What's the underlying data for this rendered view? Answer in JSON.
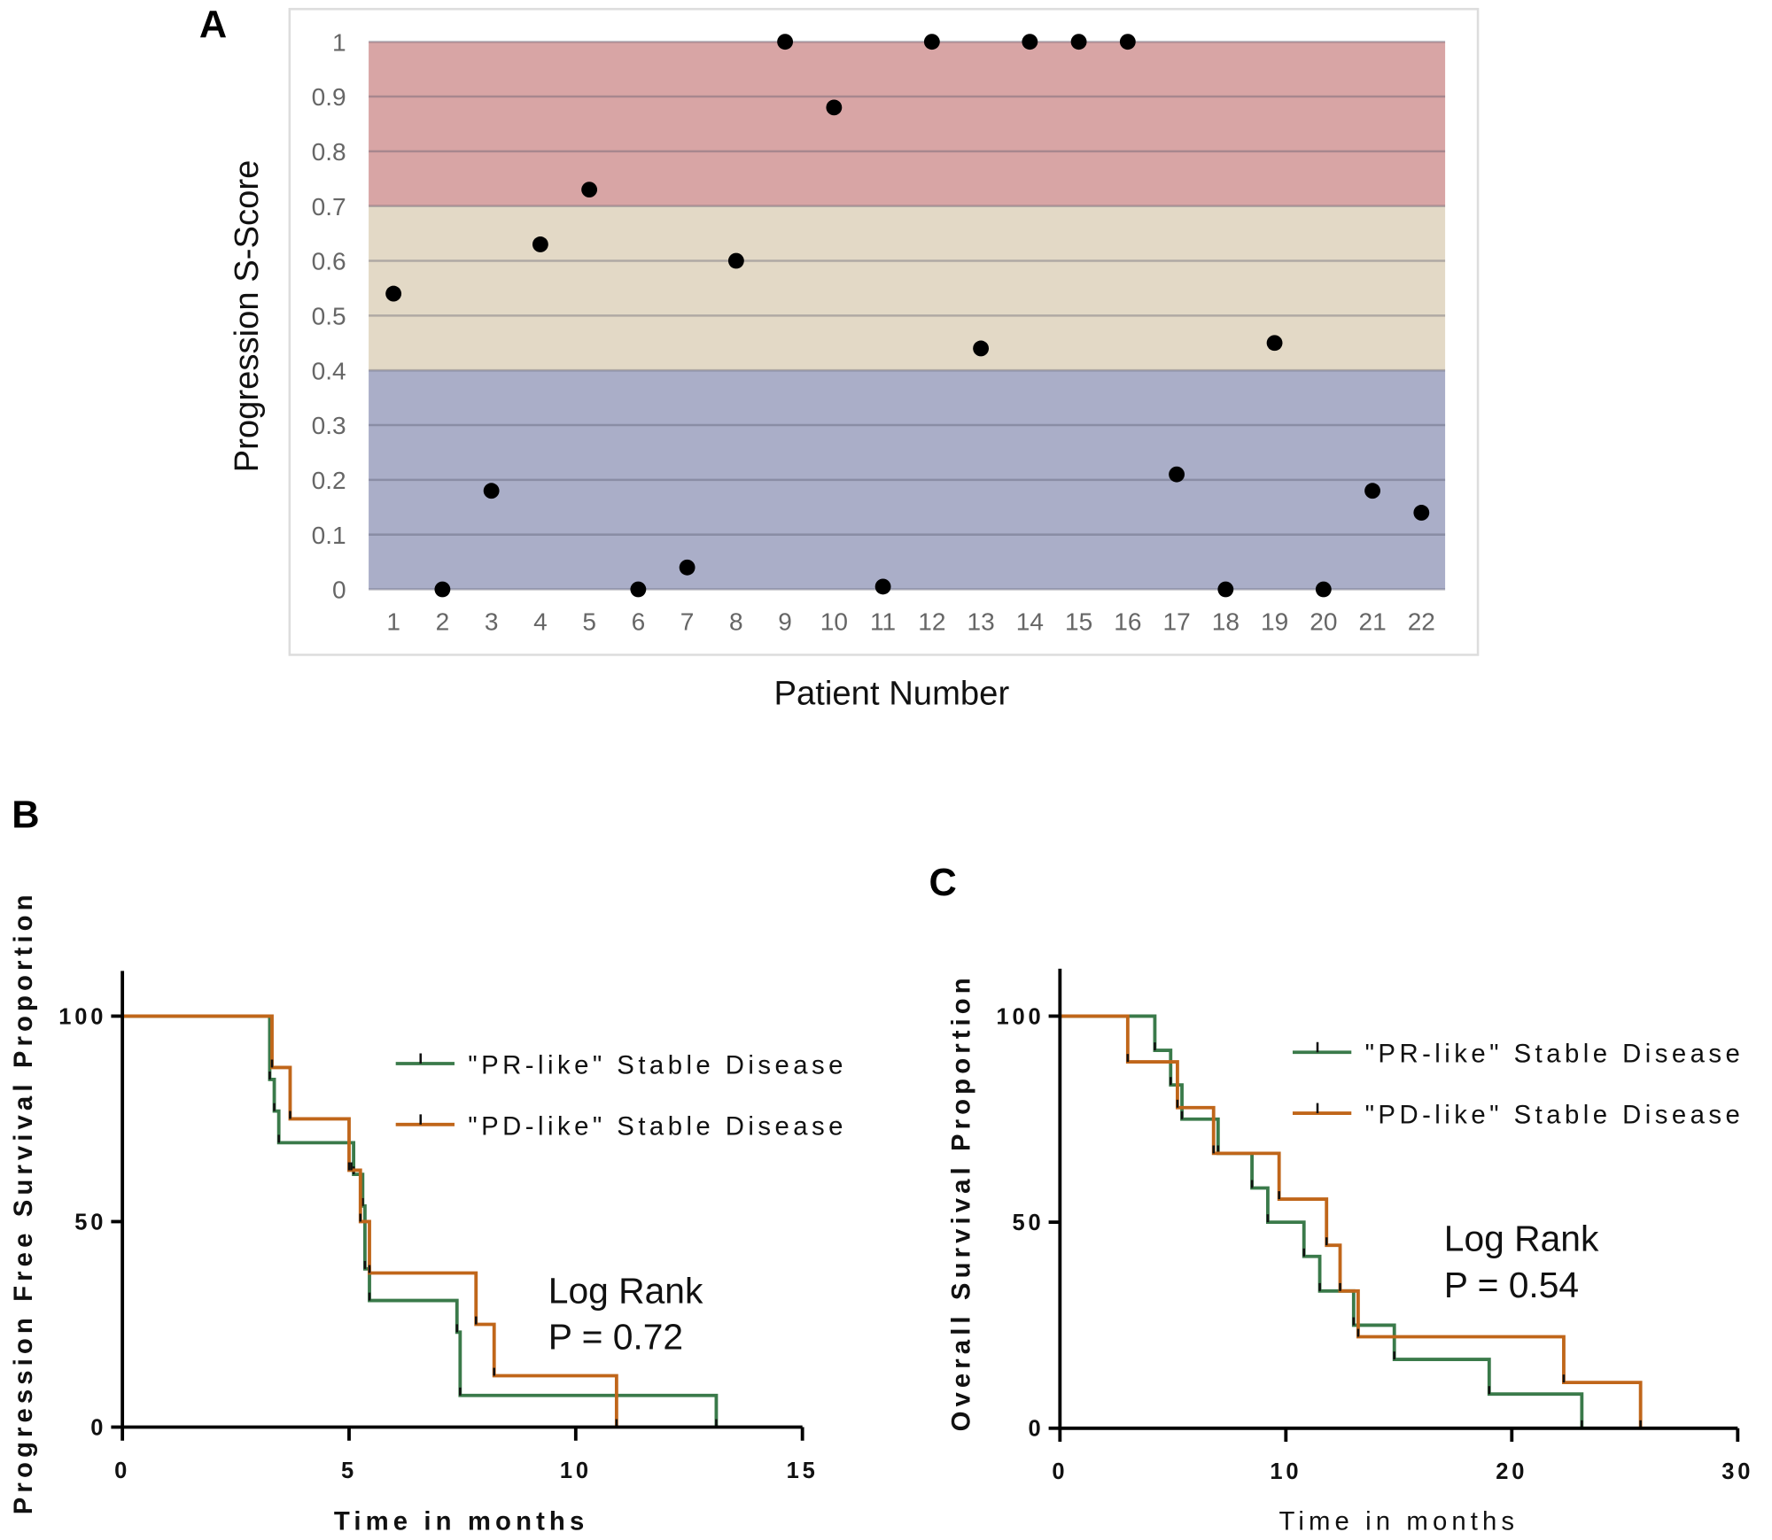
{
  "chart_data": [
    {
      "panel": "A",
      "type": "scatter",
      "xlabel": "Patient Number",
      "ylabel": "Progression S-Score",
      "ylim": [
        0,
        1
      ],
      "yticks": [
        "0",
        "0.1",
        "0.2",
        "0.3",
        "0.4",
        "0.5",
        "0.6",
        "0.7",
        "0.8",
        "0.9",
        "1"
      ],
      "categories": [
        "1",
        "2",
        "3",
        "4",
        "5",
        "6",
        "7",
        "8",
        "9",
        "10",
        "11",
        "12",
        "13",
        "14",
        "15",
        "16",
        "17",
        "18",
        "19",
        "20",
        "21",
        "22"
      ],
      "values": [
        0.54,
        0,
        0.18,
        0.63,
        0.73,
        0,
        0.04,
        0.6,
        1,
        0.88,
        0.005,
        1,
        0.44,
        1,
        1,
        1,
        0.21,
        0,
        0.45,
        0,
        0.18,
        0.14
      ],
      "bands": [
        {
          "from": 0,
          "to": 0.4,
          "color": "#aaaec8"
        },
        {
          "from": 0.4,
          "to": 0.7,
          "color": "#e3d9c6"
        },
        {
          "from": 0.7,
          "to": 1,
          "color": "#d8a5a5"
        }
      ],
      "grid": true
    },
    {
      "panel": "B",
      "type": "line",
      "xlabel": "Time in months",
      "ylabel": "Progression Free Survival Proportion",
      "xlim": [
        0,
        15
      ],
      "ylim": [
        0,
        100
      ],
      "xticks": [
        "0",
        "5",
        "10",
        "15"
      ],
      "yticks": [
        "0",
        "50",
        "100"
      ],
      "legend": "top-right",
      "annotation": [
        "Log Rank",
        "P = 0.72"
      ],
      "series": [
        {
          "name": "\"PR-like\" Stable Disease",
          "color": "#3a7a4a",
          "steps": [
            [
              0,
              100
            ],
            [
              3.25,
              84.6
            ],
            [
              3.35,
              76.9
            ],
            [
              3.45,
              69.2
            ],
            [
              5.1,
              61.5
            ],
            [
              5.3,
              53.8
            ],
            [
              5.35,
              38.5
            ],
            [
              5.45,
              30.8
            ],
            [
              7.38,
              23.1
            ],
            [
              7.45,
              7.7
            ],
            [
              13.1,
              0
            ]
          ]
        },
        {
          "name": "\"PD-like\" Stable Disease",
          "color": "#c0661a",
          "steps": [
            [
              0,
              100
            ],
            [
              3.3,
              87.5
            ],
            [
              3.7,
              75
            ],
            [
              5.0,
              62.5
            ],
            [
              5.05,
              62.5
            ],
            [
              5.25,
              50
            ],
            [
              5.45,
              37.5
            ],
            [
              7.8,
              25
            ],
            [
              8.2,
              12.5
            ],
            [
              10.9,
              0
            ]
          ]
        }
      ]
    },
    {
      "panel": "C",
      "type": "line",
      "xlabel": "Time in months",
      "ylabel": "Overall Survival Proportion",
      "xlim": [
        0,
        30
      ],
      "ylim": [
        0,
        100
      ],
      "xticks": [
        "0",
        "10",
        "20",
        "30"
      ],
      "yticks": [
        "0",
        "50",
        "100"
      ],
      "legend": "top-right",
      "annotation": [
        "Log Rank",
        "P = 0.54"
      ],
      "series": [
        {
          "name": "\"PR-like\" Stable Disease",
          "color": "#3a7a4a",
          "steps": [
            [
              0,
              100
            ],
            [
              4.2,
              91.7
            ],
            [
              4.9,
              83.3
            ],
            [
              5.4,
              75
            ],
            [
              7.0,
              66.7
            ],
            [
              8.5,
              58.3
            ],
            [
              9.2,
              50
            ],
            [
              10.8,
              41.7
            ],
            [
              11.5,
              33.3
            ],
            [
              13.0,
              25
            ],
            [
              14.8,
              16.7
            ],
            [
              19.0,
              8.3
            ],
            [
              23.1,
              0
            ]
          ]
        },
        {
          "name": "\"PD-like\" Stable Disease",
          "color": "#c0661a",
          "steps": [
            [
              0,
              100
            ],
            [
              3.0,
              88.9
            ],
            [
              5.2,
              77.8
            ],
            [
              6.8,
              66.7
            ],
            [
              9.7,
              55.6
            ],
            [
              11.8,
              44.4
            ],
            [
              12.4,
              33.3
            ],
            [
              13.2,
              22.2
            ],
            [
              22.3,
              11.1
            ],
            [
              25.7,
              0
            ]
          ]
        }
      ]
    }
  ]
}
